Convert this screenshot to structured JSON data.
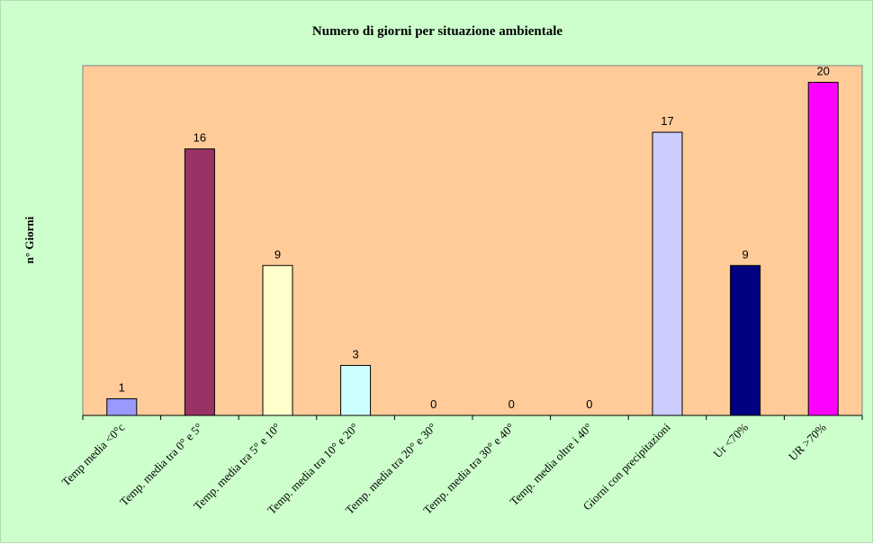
{
  "chart_data": {
    "type": "bar",
    "title": "Numero di giorni per situazione ambientale",
    "xlabel": "",
    "ylabel": "n° Giorni",
    "categories": [
      "Temp media <0°c",
      "Temp. media tra 0° e 5°",
      "Temp. media tra 5° e 10°",
      "Temp. media tra 10° e 20°",
      "Temp. media tra 20° e 30°",
      "Temp. media tra 30° e 40°",
      "Temp. media oltre i 40°",
      "Giorni con precipitazioni",
      "Ur  <70%",
      "UR >70%"
    ],
    "values": [
      1,
      16,
      9,
      3,
      0,
      0,
      0,
      17,
      9,
      20
    ],
    "colors": [
      "#9999ff",
      "#993366",
      "#ffffcc",
      "#ccffff",
      "#660066",
      "#ff8080",
      "#0066cc",
      "#ccccff",
      "#000080",
      "#ff00ff"
    ],
    "ylim": [
      0,
      21
    ],
    "grid": false,
    "legend": "none",
    "background": "#ccffcc",
    "plot_background": "#ffcc99"
  }
}
